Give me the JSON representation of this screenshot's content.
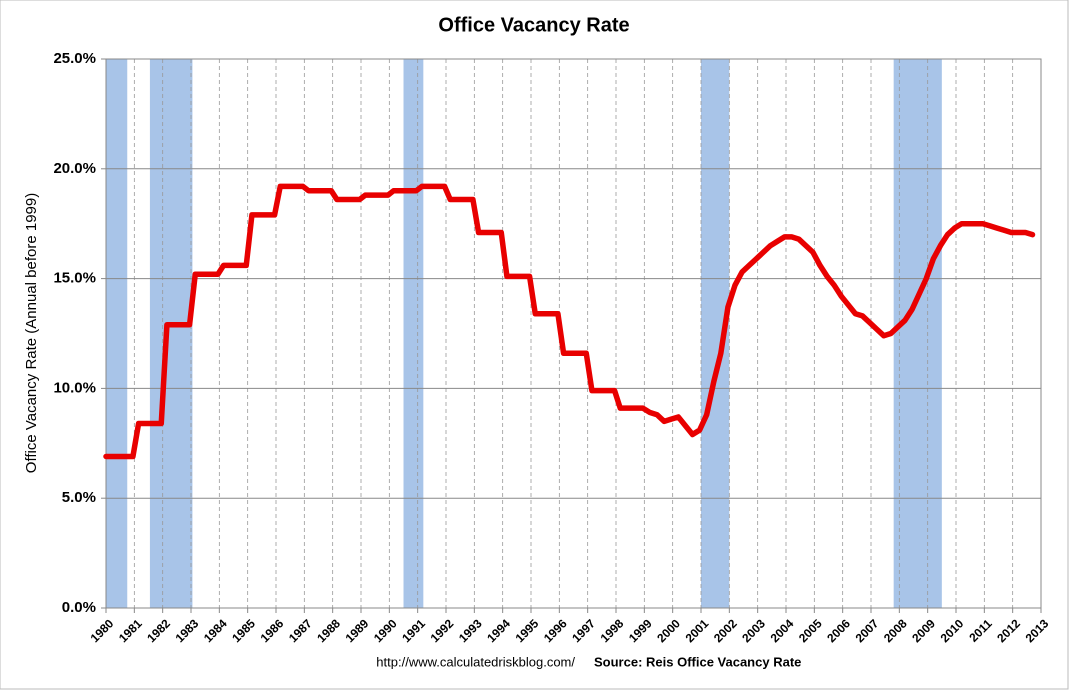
{
  "chart_data": {
    "type": "line",
    "title": "Office Vacancy Rate",
    "y_label": "Office Vacancy Rate (Annual before 1999)",
    "footer_url": "http://www.calculatedriskblog.com/",
    "footer_source": "Source: Reis Office Vacancy Rate",
    "x": [
      1980,
      1980.95,
      1981.15,
      1981.95,
      1982.15,
      1982.95,
      1983.15,
      1983.95,
      1984.15,
      1984.95,
      1985.15,
      1985.95,
      1986.15,
      1986.95,
      1987.15,
      1987.95,
      1988.15,
      1988.95,
      1989.15,
      1989.95,
      1990.15,
      1990.95,
      1991.15,
      1991.95,
      1992.15,
      1992.95,
      1993.15,
      1993.95,
      1994.15,
      1994.95,
      1995.15,
      1995.95,
      1996.15,
      1996.95,
      1997.15,
      1997.95,
      1998.15,
      1998.95,
      1999.2,
      1999.45,
      1999.7,
      1999.95,
      2000.2,
      2000.45,
      2000.7,
      2000.95,
      2001.2,
      2001.45,
      2001.7,
      2001.95,
      2002.2,
      2002.45,
      2002.7,
      2002.95,
      2003.2,
      2003.45,
      2003.7,
      2003.95,
      2004.2,
      2004.45,
      2004.7,
      2004.95,
      2005.2,
      2005.45,
      2005.7,
      2005.95,
      2006.2,
      2006.45,
      2006.7,
      2006.95,
      2007.2,
      2007.45,
      2007.7,
      2007.95,
      2008.2,
      2008.45,
      2008.7,
      2008.95,
      2009.2,
      2009.45,
      2009.7,
      2009.95,
      2010.2,
      2010.45,
      2010.7,
      2010.95,
      2011.2,
      2011.45,
      2011.7,
      2011.95,
      2012.2,
      2012.45,
      2012.7
    ],
    "series": [
      {
        "name": "Office Vacancy Rate",
        "color": "#e80000",
        "values": [
          6.9,
          6.9,
          8.4,
          8.4,
          12.9,
          12.9,
          15.2,
          15.2,
          15.6,
          15.6,
          17.9,
          17.9,
          19.2,
          19.2,
          19.0,
          19.0,
          18.6,
          18.6,
          18.8,
          18.8,
          19.0,
          19.0,
          19.2,
          19.2,
          18.6,
          18.6,
          17.1,
          17.1,
          15.1,
          15.1,
          13.4,
          13.4,
          11.6,
          11.6,
          9.9,
          9.9,
          9.1,
          9.1,
          8.9,
          8.8,
          8.5,
          8.6,
          8.7,
          8.3,
          7.9,
          8.1,
          8.8,
          10.3,
          11.6,
          13.7,
          14.7,
          15.3,
          15.6,
          15.9,
          16.2,
          16.5,
          16.7,
          16.9,
          16.9,
          16.8,
          16.5,
          16.2,
          15.6,
          15.1,
          14.7,
          14.2,
          13.8,
          13.4,
          13.3,
          13.0,
          12.7,
          12.4,
          12.5,
          12.8,
          13.1,
          13.6,
          14.3,
          15.0,
          15.9,
          16.5,
          17.0,
          17.3,
          17.5,
          17.5,
          17.5,
          17.5,
          17.4,
          17.3,
          17.2,
          17.1,
          17.1,
          17.1,
          17.0
        ]
      }
    ],
    "recessions": [
      [
        1980.0,
        1980.75
      ],
      [
        1981.55,
        1983.05
      ],
      [
        1990.5,
        1991.2
      ],
      [
        2001.0,
        2002.0
      ],
      [
        2007.8,
        2009.5
      ]
    ],
    "recession_color": "#a8c4e8",
    "xlim": [
      1980,
      2013
    ],
    "xticks": [
      1980,
      1981,
      1982,
      1983,
      1984,
      1985,
      1986,
      1987,
      1988,
      1989,
      1990,
      1991,
      1992,
      1993,
      1994,
      1995,
      1996,
      1997,
      1998,
      1999,
      2000,
      2001,
      2002,
      2003,
      2004,
      2005,
      2006,
      2007,
      2008,
      2009,
      2010,
      2011,
      2012,
      2013
    ],
    "ylim": [
      0,
      25
    ],
    "yticks": [
      {
        "value": 0,
        "label": "0.0%"
      },
      {
        "value": 5,
        "label": "5.0%"
      },
      {
        "value": 10,
        "label": "10.0%"
      },
      {
        "value": 15,
        "label": "15.0%"
      },
      {
        "value": 20,
        "label": "20.0%"
      },
      {
        "value": 25,
        "label": "25.0%"
      }
    ],
    "grid": true
  }
}
